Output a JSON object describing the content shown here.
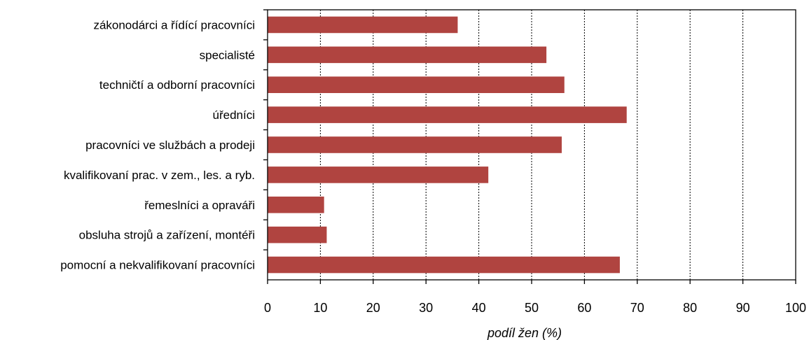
{
  "chart_data": {
    "type": "bar",
    "orientation": "horizontal",
    "categories": [
      "zákonodárci a řídící pracovníci",
      "specialisté",
      "techničtí a odborní pracovníci",
      "úředníci",
      "pracovníci ve službách a prodeji",
      "kvalifikovaní prac. v zem., les. a ryb.",
      "řemeslníci a opraváři",
      "obsluha strojů a zařízení, montéři",
      "pomocní a nekvalifikovaní pracovníci"
    ],
    "values": [
      36,
      52.8,
      56.2,
      68,
      55.7,
      41.8,
      10.7,
      11.2,
      66.7
    ],
    "xlabel": "podíl žen (%)",
    "xlim": [
      0,
      100
    ],
    "xticks": [
      0,
      10,
      20,
      30,
      40,
      50,
      60,
      70,
      80,
      90,
      100
    ],
    "grid": "vertical dotted",
    "bar_color": "#b04440"
  }
}
